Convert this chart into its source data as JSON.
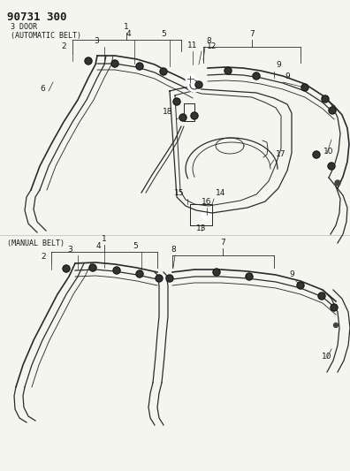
{
  "title": "90731 300",
  "section1_label": "3 DOOR\n(AUTOMATIC BELT)",
  "section2_label": "(MANUAL BELT)",
  "bg_color": "#f5f5f0",
  "line_color": "#2a2a2a",
  "text_color": "#1a1a1a",
  "title_fontsize": 9,
  "label_fontsize": 6.5,
  "number_fontsize": 6.5,
  "fig_width": 3.96,
  "fig_height": 5.33,
  "dpi": 100
}
